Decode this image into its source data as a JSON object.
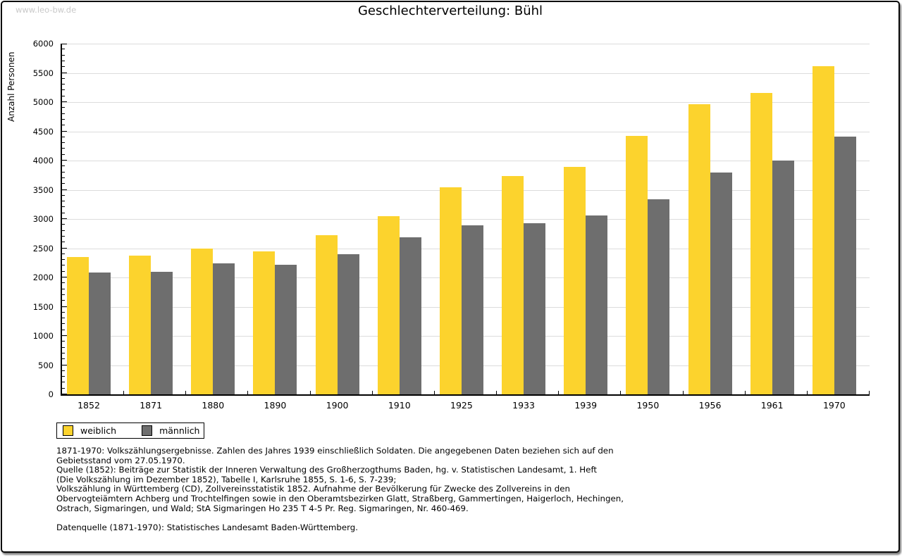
{
  "watermark": "www.leo-bw.de",
  "header": {
    "title": "Geschlechterverteilung: Bühl"
  },
  "chart_data": {
    "type": "bar",
    "title": "Geschlechterverteilung: Bühl",
    "xlabel": "",
    "ylabel": "Anzahl Personen",
    "ylim": [
      0,
      6000
    ],
    "ytick_step": 500,
    "yminor_step": 100,
    "grid": "horizontal major gridlines",
    "legend_position": "bottom-left outside plot",
    "categories": [
      "1852",
      "1871",
      "1880",
      "1890",
      "1900",
      "1910",
      "1925",
      "1933",
      "1939",
      "1950",
      "1956",
      "1961",
      "1970"
    ],
    "series": [
      {
        "name": "weiblich",
        "color": "#fcd32d",
        "values": [
          2350,
          2375,
          2500,
          2450,
          2720,
          3050,
          3545,
          3730,
          3890,
          4420,
          4970,
          5160,
          5620
        ]
      },
      {
        "name": "männlich",
        "color": "#6e6e6e",
        "values": [
          2090,
          2100,
          2245,
          2220,
          2400,
          2690,
          2890,
          2930,
          3060,
          3340,
          3790,
          4000,
          4410
        ]
      }
    ]
  },
  "legend": {
    "items": [
      {
        "label": "weiblich",
        "color": "#fcd32d"
      },
      {
        "label": "männlich",
        "color": "#6e6e6e"
      }
    ]
  },
  "footer": {
    "lines": [
      "1871-1970: Volkszählungsergebnisse. Zahlen des Jahres 1939 einschließlich Soldaten. Die angegebenen Daten beziehen sich auf den",
      "Gebietsstand vom 27.05.1970.",
      "Quelle (1852): Beiträge zur Statistik der Inneren Verwaltung des Großherzogthums Baden, hg. v. Statistischen Landesamt, 1. Heft",
      "(Die Volkszählung im Dezember 1852), Tabelle I, Karlsruhe 1855, S. 1-6, S. 7-239;",
      "Volkszählung in Württemberg (CD), Zollvereinsstatistik 1852. Aufnahme der Bevölkerung für Zwecke des Zollvereins in den",
      "Obervogteiämtern Achberg und Trochtelfingen sowie in den Oberamtsbezirken Glatt, Straßberg, Gammertingen, Haigerloch, Hechingen,",
      "Ostrach, Sigmaringen, und Wald; StA Sigmaringen Ho 235 T 4-5 Pr. Reg. Sigmaringen, Nr. 460-469.",
      "",
      "Datenquelle (1871-1970): Statistisches Landesamt Baden-Württemberg."
    ]
  },
  "colors": {
    "bar_weiblich": "#fcd32d",
    "bar_maennlich": "#6e6e6e",
    "gridline": "#dcdcdc",
    "axis": "#000000",
    "watermark": "#c9c9c9",
    "frame_border": "#0a0a0a",
    "background": "#ffffff"
  }
}
